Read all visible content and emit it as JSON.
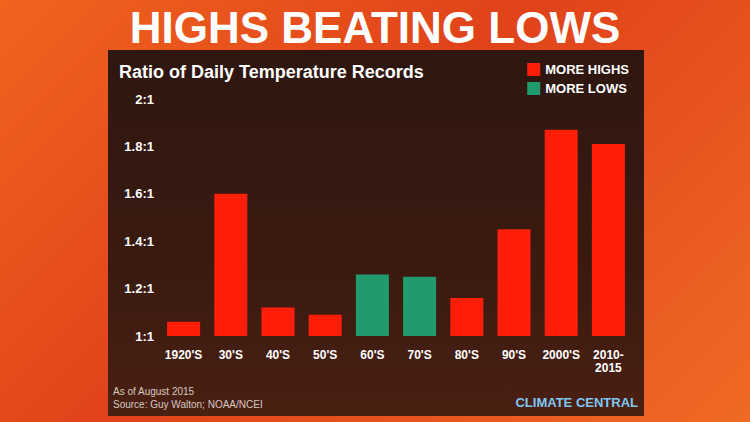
{
  "chart_data": {
    "type": "bar",
    "title": "HIGHS BEATING LOWS",
    "subtitle": "Ratio of Daily Temperature Records",
    "categories": [
      "1920'S",
      "30'S",
      "40'S",
      "50'S",
      "60'S",
      "70'S",
      "80'S",
      "90'S",
      "2000'S",
      "2010-2015"
    ],
    "series": [
      {
        "name": "MORE HIGHS",
        "color": "#ff1e0a",
        "values": [
          1.06,
          1.6,
          1.12,
          1.09,
          null,
          null,
          1.16,
          1.45,
          1.87,
          1.81
        ]
      },
      {
        "name": "MORE LOWS",
        "color": "#1f9b6d",
        "values": [
          null,
          null,
          null,
          null,
          1.26,
          1.25,
          null,
          null,
          null,
          null
        ]
      }
    ],
    "ylim": [
      1,
      2
    ],
    "yticks": [
      {
        "value": 1,
        "label": "1:1"
      },
      {
        "value": 1.2,
        "label": "1.2:1"
      },
      {
        "value": 1.4,
        "label": "1.4:1"
      },
      {
        "value": 1.6,
        "label": "1.6:1"
      },
      {
        "value": 1.8,
        "label": "1.8:1"
      },
      {
        "value": 2,
        "label": "2:1"
      }
    ],
    "grid": false,
    "legend": "top-right",
    "annotations": [
      "As of August 2015",
      "Source: Guy Walton; NOAA/NCEI",
      "CLIMATE CENTRAL"
    ]
  }
}
